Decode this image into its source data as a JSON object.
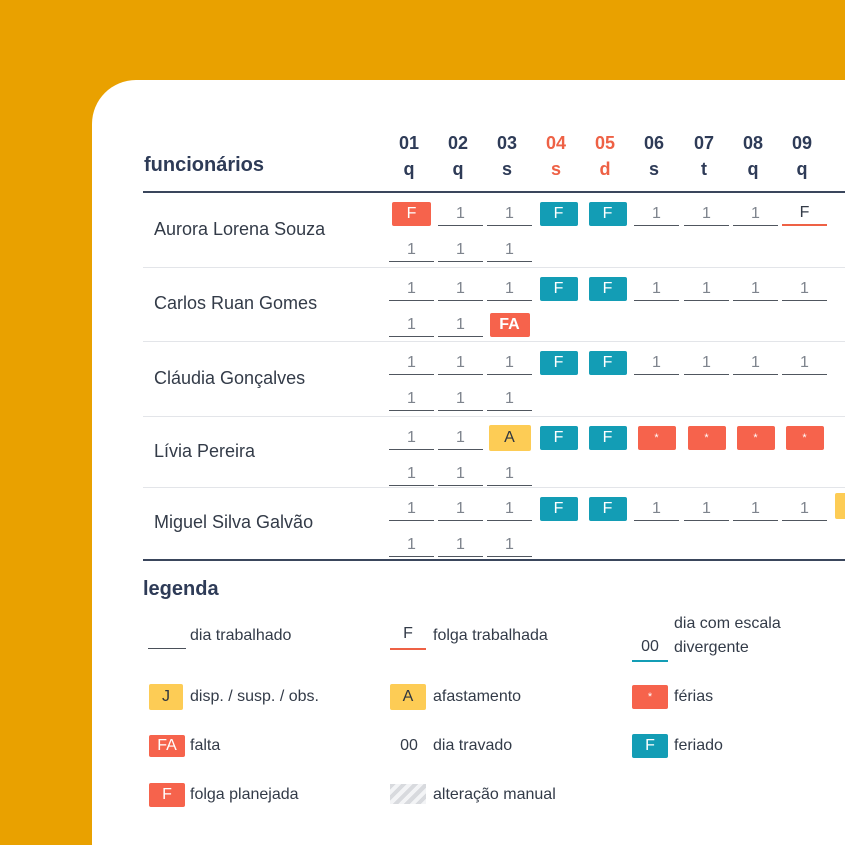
{
  "header": {
    "employees_title": "funcionários",
    "days": [
      {
        "num": "01",
        "dow": "q",
        "weekend": false
      },
      {
        "num": "02",
        "dow": "q",
        "weekend": false
      },
      {
        "num": "03",
        "dow": "s",
        "weekend": false
      },
      {
        "num": "04",
        "dow": "s",
        "weekend": true
      },
      {
        "num": "05",
        "dow": "d",
        "weekend": true
      },
      {
        "num": "06",
        "dow": "s",
        "weekend": false
      },
      {
        "num": "07",
        "dow": "t",
        "weekend": false
      },
      {
        "num": "08",
        "dow": "q",
        "weekend": false
      },
      {
        "num": "09",
        "dow": "q",
        "weekend": false
      }
    ]
  },
  "employees": [
    {
      "name": "Aurora Lorena Souza",
      "row1": [
        {
          "type": "planned-off",
          "text": "F"
        },
        {
          "type": "worked",
          "text": "1"
        },
        {
          "type": "worked",
          "text": "1"
        },
        {
          "type": "holiday",
          "text": "F"
        },
        {
          "type": "holiday",
          "text": "F"
        },
        {
          "type": "worked",
          "text": "1"
        },
        {
          "type": "worked",
          "text": "1"
        },
        {
          "type": "worked",
          "text": "1"
        },
        {
          "type": "worked-off",
          "text": "F"
        }
      ],
      "row2": [
        {
          "type": "worked",
          "text": "1"
        },
        {
          "type": "worked",
          "text": "1"
        },
        {
          "type": "worked",
          "text": "1"
        }
      ]
    },
    {
      "name": "Carlos Ruan Gomes",
      "row1": [
        {
          "type": "worked",
          "text": "1"
        },
        {
          "type": "worked",
          "text": "1"
        },
        {
          "type": "worked",
          "text": "1"
        },
        {
          "type": "holiday",
          "text": "F"
        },
        {
          "type": "holiday",
          "text": "F"
        },
        {
          "type": "worked",
          "text": "1"
        },
        {
          "type": "worked",
          "text": "1"
        },
        {
          "type": "worked",
          "text": "1"
        },
        {
          "type": "worked",
          "text": "1"
        }
      ],
      "row2": [
        {
          "type": "worked",
          "text": "1"
        },
        {
          "type": "worked",
          "text": "1"
        },
        {
          "type": "absence",
          "text": "FA"
        }
      ]
    },
    {
      "name": "Cláudia Gonçalves",
      "row1": [
        {
          "type": "worked",
          "text": "1"
        },
        {
          "type": "worked",
          "text": "1"
        },
        {
          "type": "worked",
          "text": "1"
        },
        {
          "type": "holiday",
          "text": "F"
        },
        {
          "type": "holiday",
          "text": "F"
        },
        {
          "type": "worked",
          "text": "1"
        },
        {
          "type": "worked",
          "text": "1"
        },
        {
          "type": "worked",
          "text": "1"
        },
        {
          "type": "worked",
          "text": "1"
        }
      ],
      "row2": [
        {
          "type": "worked",
          "text": "1"
        },
        {
          "type": "worked",
          "text": "1"
        },
        {
          "type": "worked",
          "text": "1"
        }
      ]
    },
    {
      "name": "Lívia Pereira",
      "row1": [
        {
          "type": "worked",
          "text": "1"
        },
        {
          "type": "worked",
          "text": "1"
        },
        {
          "type": "leave",
          "text": "A"
        },
        {
          "type": "holiday",
          "text": "F"
        },
        {
          "type": "holiday",
          "text": "F"
        },
        {
          "type": "vacation",
          "text": "*"
        },
        {
          "type": "vacation",
          "text": "*"
        },
        {
          "type": "vacation",
          "text": "*"
        },
        {
          "type": "vacation",
          "text": "*"
        }
      ],
      "row2": [
        {
          "type": "worked",
          "text": "1"
        },
        {
          "type": "worked",
          "text": "1"
        },
        {
          "type": "worked",
          "text": "1"
        }
      ]
    },
    {
      "name": "Miguel Silva Galvão",
      "row1": [
        {
          "type": "worked",
          "text": "1"
        },
        {
          "type": "worked",
          "text": "1"
        },
        {
          "type": "worked",
          "text": "1"
        },
        {
          "type": "holiday",
          "text": "F"
        },
        {
          "type": "holiday",
          "text": "F"
        },
        {
          "type": "worked",
          "text": "1"
        },
        {
          "type": "worked",
          "text": "1"
        },
        {
          "type": "worked",
          "text": "1"
        },
        {
          "type": "worked",
          "text": "1"
        }
      ],
      "row2": [
        {
          "type": "worked",
          "text": "1"
        },
        {
          "type": "worked",
          "text": "1"
        },
        {
          "type": "worked",
          "text": "1"
        }
      ]
    }
  ],
  "legend": {
    "title": "legenda",
    "items": {
      "worked_day": {
        "label": "dia trabalhado"
      },
      "worked_off": {
        "symbol": "F",
        "label": "folga trabalhada"
      },
      "divergent": {
        "symbol": "00",
        "label_line1": "dia com escala",
        "label_line2": "divergente"
      },
      "disp": {
        "symbol": "J",
        "label": "disp. / susp. / obs."
      },
      "leave": {
        "symbol": "A",
        "label": "afastamento"
      },
      "vacation": {
        "symbol": "*",
        "label": "férias"
      },
      "absence": {
        "symbol": "FA",
        "label": "falta"
      },
      "locked": {
        "symbol": "00",
        "label": "dia travado"
      },
      "holiday": {
        "symbol": "F",
        "label": "feriado"
      },
      "planned_off": {
        "symbol": "F",
        "label": "folga planejada"
      },
      "manual": {
        "label": "alteração manual"
      }
    }
  },
  "colors": {
    "background": "#E9A100",
    "red": "#F6634C",
    "teal": "#139DB5",
    "yellow": "#FDCC55",
    "navy": "#2E3B57"
  }
}
